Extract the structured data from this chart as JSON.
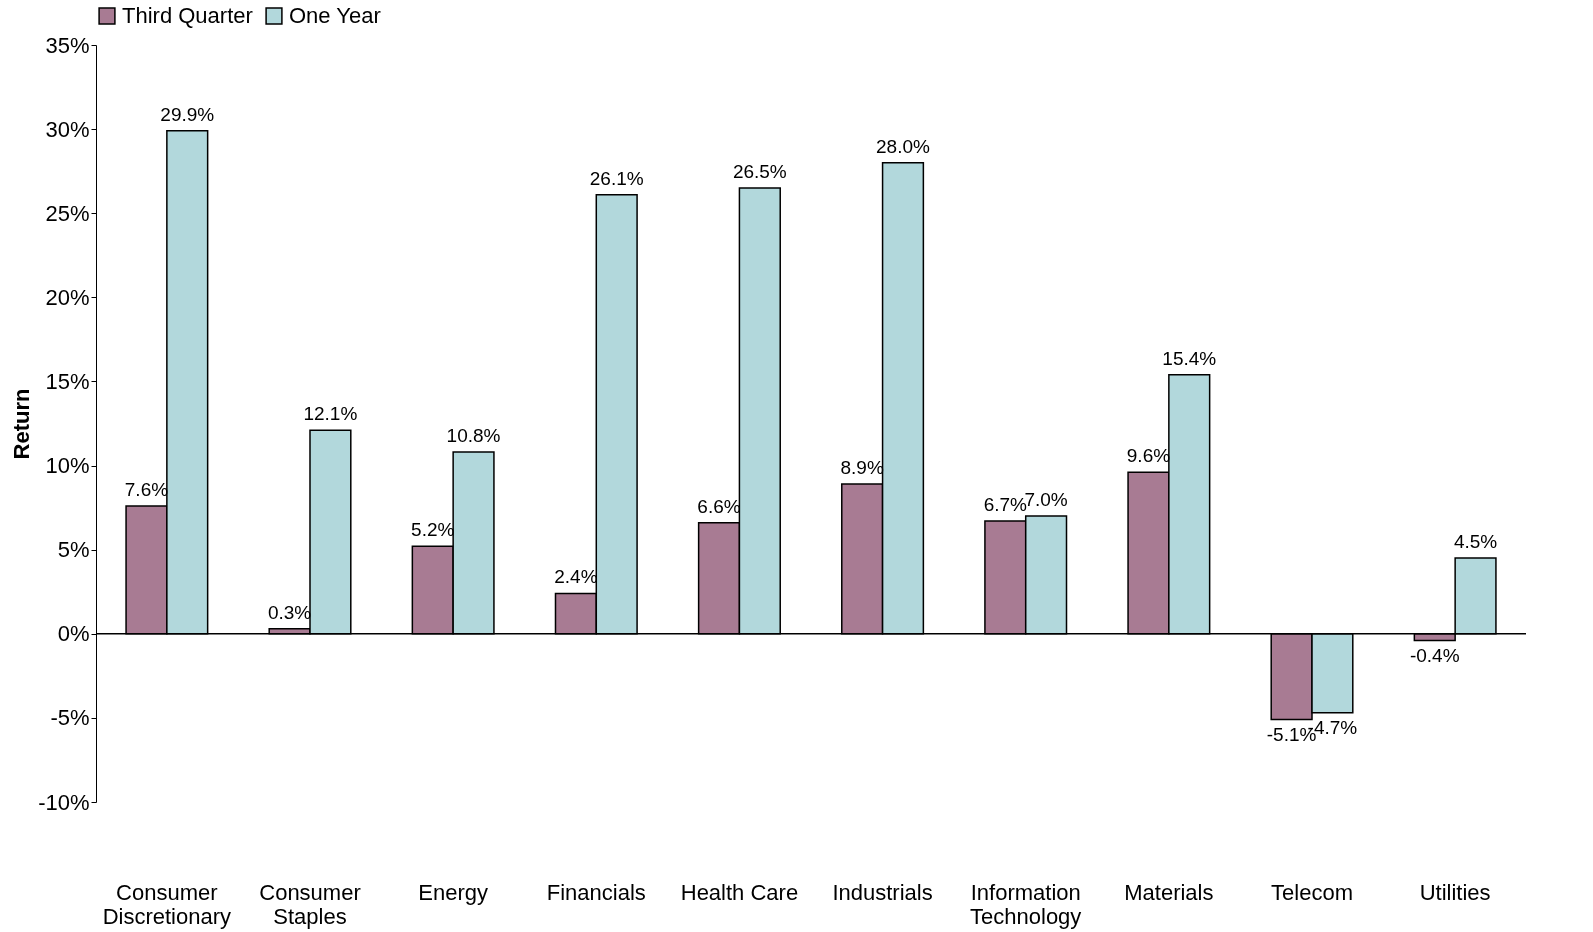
{
  "chart_data": {
    "type": "bar",
    "ylabel": "Return",
    "categories": [
      "Consumer Discretionary",
      "Consumer Staples",
      "Energy",
      "Financials",
      "Health Care",
      "Industrials",
      "Information Technology",
      "Materials",
      "Telecom",
      "Utilities"
    ],
    "series": [
      {
        "name": "Third Quarter",
        "color": "#a87b93",
        "values": [
          7.6,
          0.3,
          5.2,
          2.4,
          6.6,
          8.9,
          6.7,
          9.6,
          -5.1,
          -0.4
        ],
        "value_labels": [
          "7.6%",
          "0.3%",
          "5.2%",
          "2.4%",
          "6.6%",
          "8.9%",
          "6.7%",
          "9.6%",
          "-5.1%",
          "-0.4%"
        ]
      },
      {
        "name": "One Year",
        "color": "#b2d8dc",
        "values": [
          29.9,
          12.1,
          10.8,
          26.1,
          26.5,
          28.0,
          7.0,
          15.4,
          -4.7,
          4.5
        ],
        "value_labels": [
          "29.9%",
          "12.1%",
          "10.8%",
          "26.1%",
          "26.5%",
          "28.0%",
          "7.0%",
          "15.4%",
          "-4.7%",
          "4.5%"
        ]
      }
    ],
    "ylim": [
      -10,
      35
    ],
    "yticks": [
      {
        "value": -10,
        "label": "-10%"
      },
      {
        "value": -5,
        "label": "-5%"
      },
      {
        "value": 0,
        "label": "0%"
      },
      {
        "value": 5,
        "label": "5%"
      },
      {
        "value": 10,
        "label": "10%"
      },
      {
        "value": 15,
        "label": "15%"
      },
      {
        "value": 20,
        "label": "20%"
      },
      {
        "value": 25,
        "label": "25%"
      },
      {
        "value": 30,
        "label": "30%"
      },
      {
        "value": 35,
        "label": "35%"
      }
    ],
    "ref_lines": [
      {
        "axis": "y",
        "value": 0
      }
    ],
    "legend": "top",
    "grid": false
  }
}
